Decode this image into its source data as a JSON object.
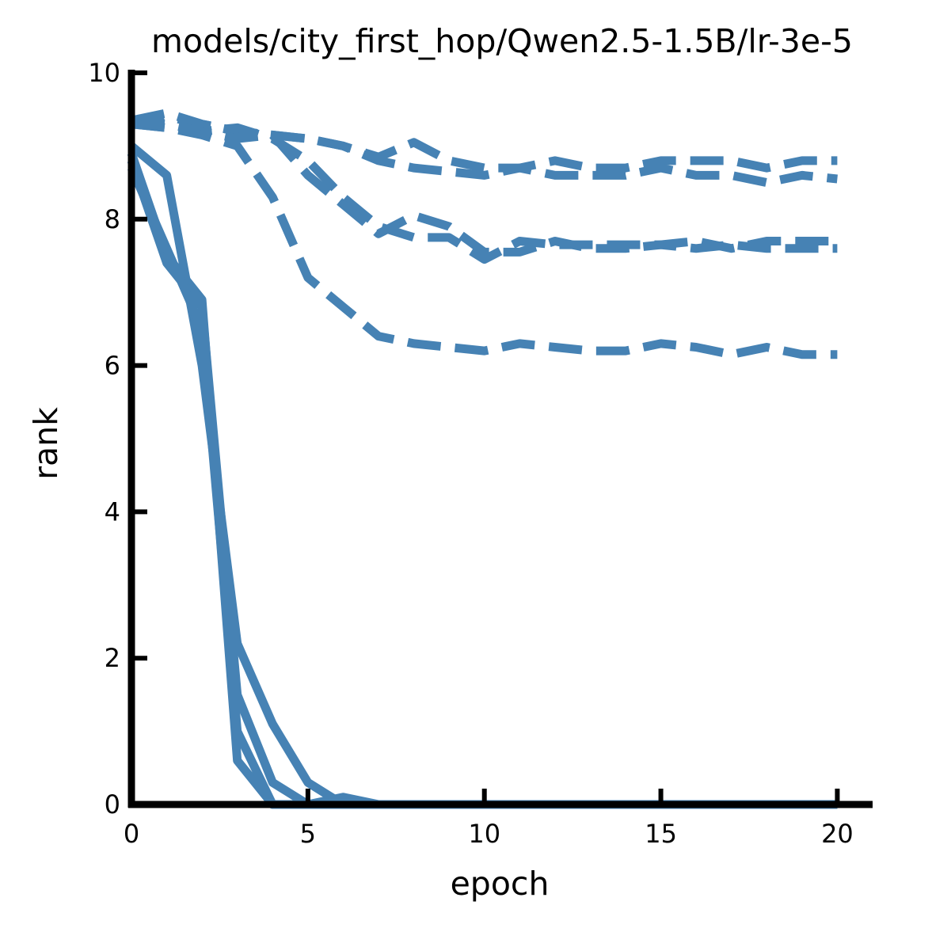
{
  "chart_data": {
    "type": "line",
    "title": "models/city_first_hop/Qwen2.5-1.5B/lr-3e-5",
    "xlabel": "epoch",
    "ylabel": "rank",
    "xlim": [
      0,
      21
    ],
    "ylim": [
      0,
      10
    ],
    "xticks": [
      "0",
      "5",
      "10",
      "15",
      "20"
    ],
    "yticks": [
      "0",
      "2",
      "4",
      "6",
      "8",
      "10"
    ],
    "grid": false,
    "color": "#4682b4",
    "series": [
      {
        "style": "solid",
        "x": [
          0,
          1,
          2,
          3,
          4,
          5,
          6,
          7,
          8,
          9,
          10,
          11,
          12,
          13,
          14,
          15,
          16,
          17,
          18,
          19,
          20
        ],
        "values": [
          9.0,
          8.6,
          6.0,
          2.2,
          1.1,
          0.3,
          0,
          0,
          0,
          0,
          0,
          0,
          0,
          0,
          0,
          0,
          0,
          0,
          0,
          0,
          0
        ]
      },
      {
        "style": "solid",
        "x": [
          0,
          1,
          2,
          3,
          4,
          5,
          6,
          7,
          8,
          9,
          10,
          11,
          12,
          13,
          14,
          15,
          16,
          17,
          18,
          19,
          20
        ],
        "values": [
          8.9,
          7.5,
          6.9,
          0.6,
          0.0,
          0,
          0,
          0,
          0,
          0,
          0,
          0,
          0,
          0,
          0,
          0,
          0,
          0,
          0,
          0,
          0
        ]
      },
      {
        "style": "solid",
        "x": [
          0,
          1,
          2,
          3,
          4,
          5,
          6,
          7,
          8,
          9,
          10,
          11,
          12,
          13,
          14,
          15,
          16,
          17,
          18,
          19,
          20
        ],
        "values": [
          8.8,
          7.4,
          6.8,
          1.5,
          0.3,
          0.0,
          0.1,
          0,
          0,
          0,
          0,
          0,
          0,
          0,
          0,
          0,
          0,
          0,
          0,
          0,
          0
        ]
      },
      {
        "style": "solid",
        "x": [
          0,
          1,
          2,
          3,
          4,
          5,
          6,
          7,
          8,
          9,
          10,
          11,
          12,
          13,
          14,
          15,
          16,
          17,
          18,
          19,
          20
        ],
        "values": [
          8.7,
          7.6,
          6.5,
          1.0,
          0.0,
          0,
          0,
          0,
          0,
          0,
          0,
          0,
          0,
          0,
          0,
          0,
          0,
          0,
          0,
          0,
          0
        ]
      },
      {
        "style": "dashed",
        "x": [
          0,
          1,
          2,
          3,
          4,
          5,
          6,
          7,
          8,
          9,
          10,
          11,
          12,
          13,
          14,
          15,
          16,
          17,
          18,
          19,
          20
        ],
        "values": [
          9.35,
          9.45,
          9.3,
          9.2,
          9.15,
          9.1,
          9.0,
          8.8,
          8.7,
          8.65,
          8.6,
          8.7,
          8.8,
          8.7,
          8.7,
          8.8,
          8.8,
          8.8,
          8.7,
          8.8,
          8.8
        ]
      },
      {
        "style": "dashed",
        "x": [
          0,
          1,
          2,
          3,
          4,
          5,
          6,
          7,
          8,
          9,
          10,
          11,
          12,
          13,
          14,
          15,
          16,
          17,
          18,
          19,
          20
        ],
        "values": [
          9.3,
          9.4,
          9.3,
          9.2,
          9.15,
          9.1,
          9.0,
          8.85,
          9.05,
          8.8,
          8.7,
          8.7,
          8.6,
          8.6,
          8.6,
          8.7,
          8.6,
          8.6,
          8.5,
          8.6,
          8.55
        ]
      },
      {
        "style": "dashed",
        "x": [
          0,
          1,
          2,
          3,
          4,
          5,
          6,
          7,
          8,
          9,
          10,
          11,
          12,
          13,
          14,
          15,
          16,
          17,
          18,
          19,
          20
        ],
        "values": [
          9.3,
          9.25,
          9.2,
          9.25,
          9.1,
          8.8,
          8.3,
          7.9,
          7.75,
          7.75,
          7.45,
          7.7,
          7.65,
          7.65,
          7.65,
          7.65,
          7.7,
          7.6,
          7.7,
          7.7,
          7.7
        ]
      },
      {
        "style": "dashed",
        "x": [
          0,
          1,
          2,
          3,
          4,
          5,
          6,
          7,
          8,
          9,
          10,
          11,
          12,
          13,
          14,
          15,
          16,
          17,
          18,
          19,
          20
        ],
        "values": [
          9.35,
          9.3,
          9.2,
          9.1,
          9.15,
          8.6,
          8.2,
          7.8,
          8.05,
          7.9,
          7.55,
          7.55,
          7.7,
          7.6,
          7.6,
          7.65,
          7.6,
          7.65,
          7.6,
          7.6,
          7.6
        ]
      },
      {
        "style": "dashed",
        "x": [
          0,
          1,
          2,
          3,
          4,
          5,
          6,
          7,
          8,
          9,
          10,
          11,
          12,
          13,
          14,
          15,
          16,
          17,
          18,
          19,
          20
        ],
        "values": [
          9.3,
          9.25,
          9.15,
          9.0,
          8.3,
          7.2,
          6.8,
          6.4,
          6.3,
          6.25,
          6.2,
          6.3,
          6.25,
          6.2,
          6.2,
          6.3,
          6.25,
          6.15,
          6.25,
          6.15,
          6.15
        ]
      }
    ]
  }
}
